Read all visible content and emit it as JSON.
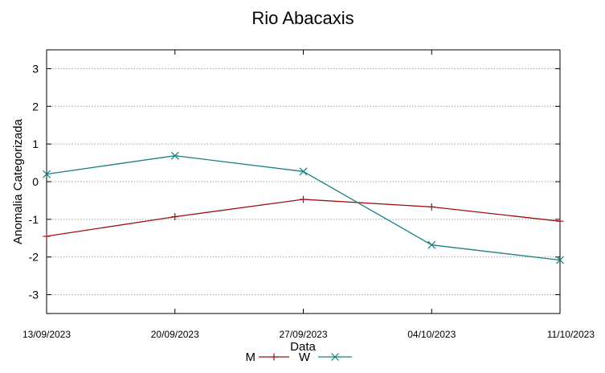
{
  "chart_data": {
    "type": "line",
    "title": "Rio Abacaxis",
    "xlabel": "Data",
    "ylabel": "Anomalia Categorizada",
    "categories": [
      "13/09/2023",
      "20/09/2023",
      "27/09/2023",
      "04/10/2023",
      "11/10/2023"
    ],
    "ylim": [
      -3.5,
      3.5
    ],
    "yticks": [
      3,
      2,
      1,
      0,
      -1,
      -2,
      -3
    ],
    "ytick_labels": [
      "3",
      "2",
      "1",
      "0",
      "-1",
      "-2",
      "-3"
    ],
    "grid": true,
    "legend_position": "bottom-center",
    "series": [
      {
        "name": "M",
        "color": "#a01010",
        "marker": "plus",
        "values": [
          -1.45,
          -0.93,
          -0.47,
          -0.67,
          -1.05
        ]
      },
      {
        "name": "W",
        "color": "#1a8080",
        "marker": "cross",
        "values": [
          0.2,
          0.69,
          0.27,
          -1.68,
          -2.08
        ]
      }
    ]
  }
}
